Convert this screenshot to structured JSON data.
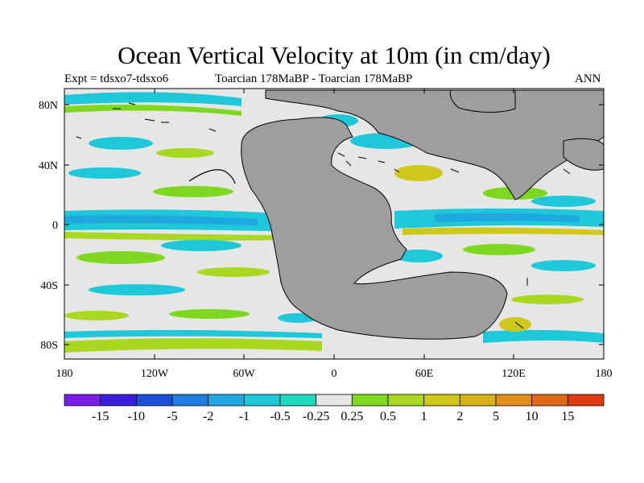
{
  "title": "Ocean Vertical Velocity at 10m (in cm/day)",
  "subtitle_left": "Expt = tdsxo7-tdsxo6",
  "subtitle_center": "Toarcian 178MaBP - Toarcian 178MaBP",
  "subtitle_right": "ANN",
  "axes": {
    "lat_ticks": [
      "80N",
      "40N",
      "0",
      "40S",
      "80S"
    ],
    "lon_ticks": [
      "180",
      "120W",
      "60W",
      "0",
      "60E",
      "120E",
      "180"
    ]
  },
  "colorbar": {
    "labels": [
      "-15",
      "-10",
      "-5",
      "-2",
      "-1",
      "-0.5",
      "-0.25",
      "0.25",
      "0.5",
      "1",
      "2",
      "5",
      "10",
      "15"
    ],
    "colors": [
      "#7a1fe8",
      "#3b1fe0",
      "#1f4fd8",
      "#1f7fe0",
      "#1fa8e0",
      "#1fc8d8",
      "#1fd8c0",
      "#e6e6e6",
      "#7ed81f",
      "#a8d81f",
      "#cfc81a",
      "#d8b01a",
      "#e0901a",
      "#e0681a",
      "#e03a10"
    ]
  },
  "colors": {
    "land": "#9e9e9e",
    "neutral": "#e6e6e6",
    "coastline": "#000000"
  }
}
